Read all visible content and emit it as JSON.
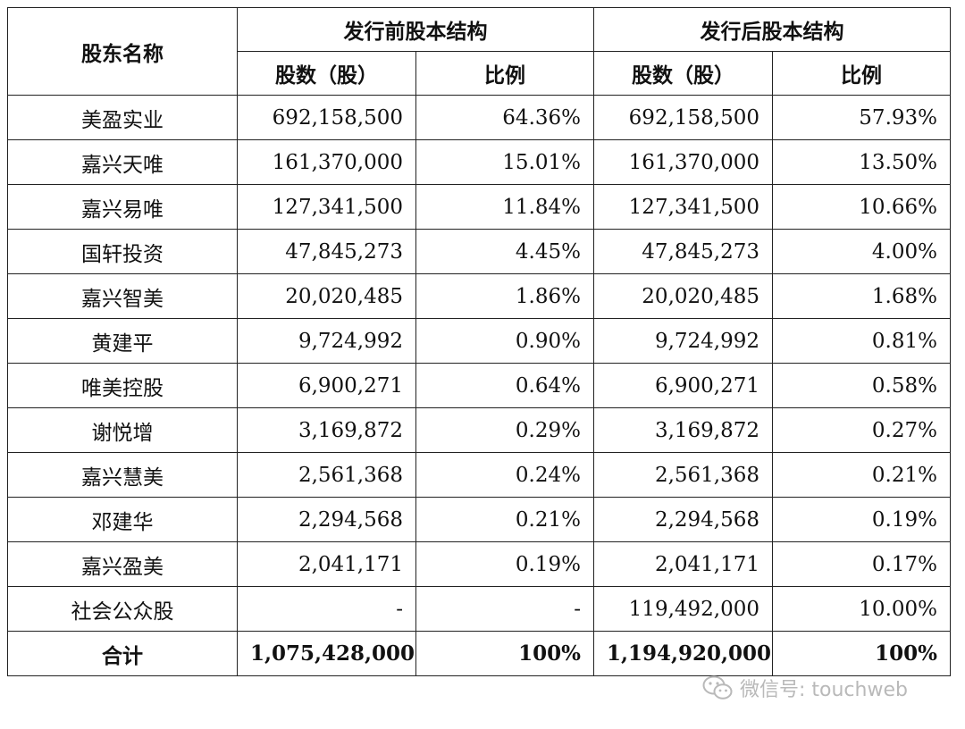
{
  "table": {
    "head": {
      "shareholder": "股东名称",
      "before_group": "发行前股本结构",
      "after_group": "发行后股本结构",
      "before_shares": "股数（股）",
      "before_ratio": "比例",
      "after_shares": "股数（股）",
      "after_ratio": "比例"
    },
    "rows": [
      {
        "name": "美盈实业",
        "before_shares": "692,158,500",
        "before_ratio": "64.36%",
        "after_shares": "692,158,500",
        "after_ratio": "57.93%"
      },
      {
        "name": "嘉兴天唯",
        "before_shares": "161,370,000",
        "before_ratio": "15.01%",
        "after_shares": "161,370,000",
        "after_ratio": "13.50%"
      },
      {
        "name": "嘉兴易唯",
        "before_shares": "127,341,500",
        "before_ratio": "11.84%",
        "after_shares": "127,341,500",
        "after_ratio": "10.66%"
      },
      {
        "name": "国轩投资",
        "before_shares": "47,845,273",
        "before_ratio": "4.45%",
        "after_shares": "47,845,273",
        "after_ratio": "4.00%"
      },
      {
        "name": "嘉兴智美",
        "before_shares": "20,020,485",
        "before_ratio": "1.86%",
        "after_shares": "20,020,485",
        "after_ratio": "1.68%"
      },
      {
        "name": "黄建平",
        "before_shares": "9,724,992",
        "before_ratio": "0.90%",
        "after_shares": "9,724,992",
        "after_ratio": "0.81%"
      },
      {
        "name": "唯美控股",
        "before_shares": "6,900,271",
        "before_ratio": "0.64%",
        "after_shares": "6,900,271",
        "after_ratio": "0.58%"
      },
      {
        "name": "谢悦增",
        "before_shares": "3,169,872",
        "before_ratio": "0.29%",
        "after_shares": "3,169,872",
        "after_ratio": "0.27%"
      },
      {
        "name": "嘉兴慧美",
        "before_shares": "2,561,368",
        "before_ratio": "0.24%",
        "after_shares": "2,561,368",
        "after_ratio": "0.21%"
      },
      {
        "name": "邓建华",
        "before_shares": "2,294,568",
        "before_ratio": "0.21%",
        "after_shares": "2,294,568",
        "after_ratio": "0.19%"
      },
      {
        "name": "嘉兴盈美",
        "before_shares": "2,041,171",
        "before_ratio": "0.19%",
        "after_shares": "2,041,171",
        "after_ratio": "0.17%"
      },
      {
        "name": "社会公众股",
        "before_shares": "-",
        "before_ratio": "-",
        "after_shares": "119,492,000",
        "after_ratio": "10.00%"
      }
    ],
    "total": {
      "name": "合计",
      "before_shares": "1,075,428,000",
      "before_ratio": "100%",
      "after_shares": "1,194,920,000",
      "after_ratio": "100%"
    }
  },
  "watermark": {
    "text": "微信号: touchweb",
    "icon": "wechat-icon"
  },
  "colors": {
    "border": "#222222",
    "watermark": "#b9b9b9"
  }
}
